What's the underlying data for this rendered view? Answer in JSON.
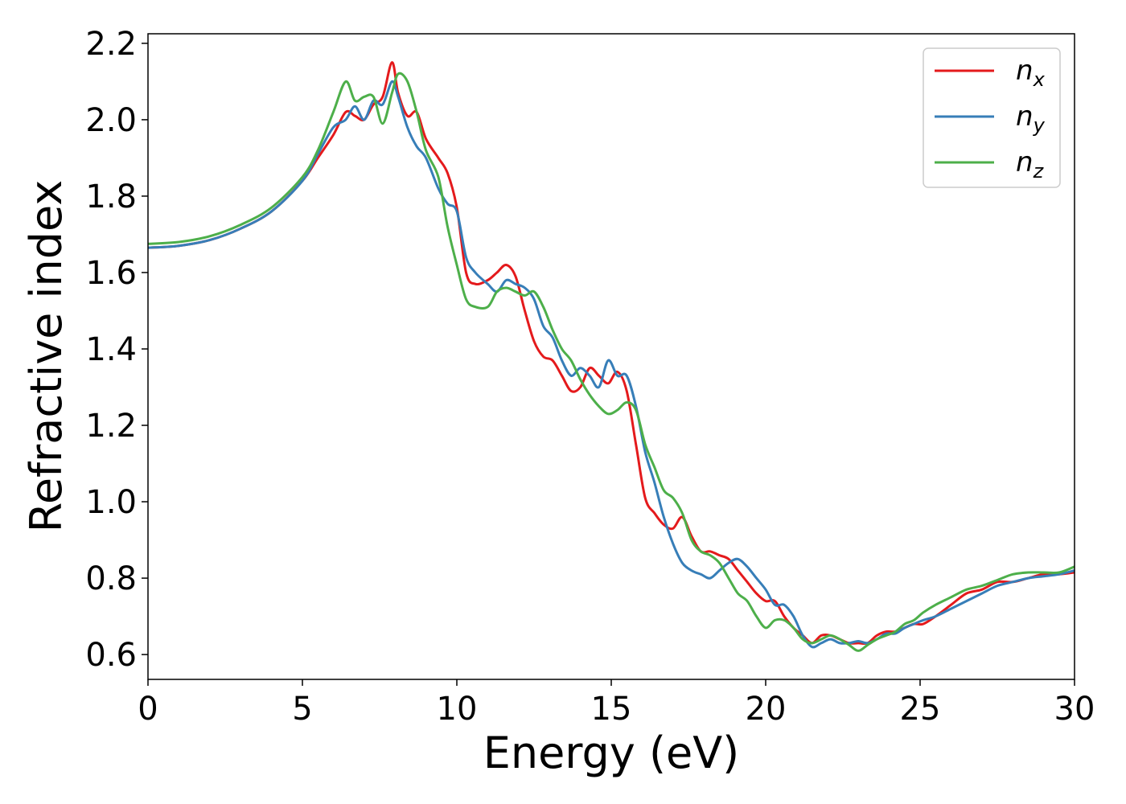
{
  "chart_data": {
    "type": "line",
    "xlabel": "Energy (eV)",
    "ylabel": "Refractive index",
    "xlim": [
      0,
      30
    ],
    "ylim": [
      0.535,
      2.225
    ],
    "xticks": [
      0,
      5,
      10,
      15,
      20,
      25,
      30
    ],
    "xtick_labels": [
      "0",
      "5",
      "10",
      "15",
      "20",
      "25",
      "30"
    ],
    "yticks": [
      0.6,
      0.8,
      1.0,
      1.2,
      1.4,
      1.6,
      1.8,
      2.0,
      2.2
    ],
    "ytick_labels": [
      "0.6",
      "0.8",
      "1.0",
      "1.2",
      "1.4",
      "1.6",
      "1.8",
      "2.0",
      "2.2"
    ],
    "grid": false,
    "legend_position": "top-right",
    "series": [
      {
        "name": "n",
        "subscript": "x",
        "color": "#e41a1c",
        "x": [
          0,
          1,
          2,
          3,
          4,
          5,
          5.5,
          6,
          6.4,
          6.7,
          7.0,
          7.3,
          7.6,
          7.9,
          8.1,
          8.4,
          8.7,
          9.0,
          9.4,
          9.7,
          10.0,
          10.3,
          10.6,
          11.0,
          11.3,
          11.6,
          11.9,
          12.2,
          12.5,
          12.8,
          13.1,
          13.4,
          13.7,
          14.0,
          14.3,
          14.6,
          14.9,
          15.2,
          15.5,
          15.8,
          16.1,
          16.4,
          16.7,
          17.0,
          17.3,
          17.6,
          17.9,
          18.2,
          18.5,
          18.8,
          19.1,
          19.4,
          19.7,
          20.0,
          20.3,
          20.6,
          20.9,
          21.2,
          21.5,
          21.8,
          22.1,
          22.4,
          22.7,
          23.0,
          23.3,
          23.6,
          23.9,
          24.2,
          24.5,
          24.8,
          25.1,
          25.5,
          26.0,
          26.5,
          27.0,
          27.5,
          28.0,
          28.5,
          29.0,
          29.5,
          30.0
        ],
        "y": [
          1.665,
          1.67,
          1.685,
          1.715,
          1.76,
          1.84,
          1.9,
          1.96,
          2.02,
          2.01,
          2.0,
          2.04,
          2.06,
          2.15,
          2.07,
          2.01,
          2.02,
          1.95,
          1.9,
          1.86,
          1.77,
          1.6,
          1.57,
          1.58,
          1.6,
          1.62,
          1.59,
          1.5,
          1.42,
          1.38,
          1.37,
          1.33,
          1.29,
          1.3,
          1.35,
          1.33,
          1.31,
          1.34,
          1.29,
          1.15,
          1.01,
          0.97,
          0.94,
          0.93,
          0.96,
          0.91,
          0.87,
          0.87,
          0.86,
          0.85,
          0.82,
          0.79,
          0.76,
          0.74,
          0.74,
          0.7,
          0.67,
          0.65,
          0.63,
          0.65,
          0.65,
          0.64,
          0.63,
          0.63,
          0.63,
          0.65,
          0.66,
          0.66,
          0.67,
          0.68,
          0.68,
          0.7,
          0.73,
          0.76,
          0.77,
          0.79,
          0.79,
          0.8,
          0.81,
          0.81,
          0.815
        ]
      },
      {
        "name": "n",
        "subscript": "y",
        "color": "#377eb8",
        "x": [
          0,
          1,
          2,
          3,
          4,
          5,
          5.5,
          6,
          6.4,
          6.7,
          7.0,
          7.3,
          7.6,
          7.9,
          8.1,
          8.4,
          8.7,
          9.0,
          9.4,
          9.7,
          10.0,
          10.3,
          10.6,
          11.0,
          11.3,
          11.6,
          11.9,
          12.2,
          12.5,
          12.8,
          13.1,
          13.4,
          13.7,
          14.0,
          14.3,
          14.6,
          14.9,
          15.2,
          15.5,
          15.8,
          16.1,
          16.4,
          16.7,
          17.0,
          17.3,
          17.6,
          17.9,
          18.2,
          18.5,
          18.8,
          19.1,
          19.4,
          19.7,
          20.0,
          20.3,
          20.6,
          20.9,
          21.2,
          21.5,
          21.8,
          22.1,
          22.4,
          22.7,
          23.0,
          23.3,
          23.6,
          23.9,
          24.2,
          24.5,
          24.8,
          25.1,
          25.5,
          26.0,
          26.5,
          27.0,
          27.5,
          28.0,
          28.5,
          29.0,
          29.5,
          30.0
        ],
        "y": [
          1.665,
          1.67,
          1.685,
          1.715,
          1.76,
          1.84,
          1.91,
          1.98,
          2.0,
          2.035,
          2.0,
          2.05,
          2.04,
          2.1,
          2.06,
          1.98,
          1.93,
          1.9,
          1.82,
          1.78,
          1.76,
          1.64,
          1.6,
          1.57,
          1.55,
          1.58,
          1.57,
          1.56,
          1.53,
          1.46,
          1.43,
          1.37,
          1.33,
          1.35,
          1.33,
          1.3,
          1.37,
          1.33,
          1.33,
          1.25,
          1.13,
          1.05,
          0.96,
          0.89,
          0.84,
          0.82,
          0.81,
          0.8,
          0.82,
          0.84,
          0.85,
          0.83,
          0.8,
          0.77,
          0.73,
          0.73,
          0.7,
          0.65,
          0.62,
          0.63,
          0.64,
          0.63,
          0.63,
          0.635,
          0.63,
          0.64,
          0.655,
          0.655,
          0.67,
          0.68,
          0.69,
          0.7,
          0.72,
          0.74,
          0.76,
          0.78,
          0.79,
          0.8,
          0.805,
          0.81,
          0.82
        ]
      },
      {
        "name": "n",
        "subscript": "z",
        "color": "#4daf4a",
        "x": [
          0,
          1,
          2,
          3,
          4,
          5,
          5.5,
          6,
          6.4,
          6.7,
          7.0,
          7.3,
          7.6,
          7.9,
          8.1,
          8.4,
          8.7,
          9.0,
          9.4,
          9.7,
          10.0,
          10.3,
          10.6,
          11.0,
          11.3,
          11.6,
          11.9,
          12.2,
          12.5,
          12.8,
          13.1,
          13.4,
          13.7,
          14.0,
          14.3,
          14.6,
          14.9,
          15.2,
          15.5,
          15.8,
          16.1,
          16.4,
          16.7,
          17.0,
          17.3,
          17.6,
          17.9,
          18.2,
          18.5,
          18.8,
          19.1,
          19.4,
          19.7,
          20.0,
          20.3,
          20.6,
          20.9,
          21.2,
          21.5,
          21.8,
          22.1,
          22.4,
          22.7,
          23.0,
          23.3,
          23.6,
          23.9,
          24.2,
          24.5,
          24.8,
          25.1,
          25.5,
          26.0,
          26.5,
          27.0,
          27.5,
          28.0,
          28.5,
          29.0,
          29.5,
          30.0
        ],
        "y": [
          1.675,
          1.68,
          1.695,
          1.725,
          1.77,
          1.85,
          1.92,
          2.02,
          2.1,
          2.05,
          2.06,
          2.06,
          1.99,
          2.07,
          2.12,
          2.1,
          2.02,
          1.92,
          1.85,
          1.72,
          1.62,
          1.53,
          1.51,
          1.51,
          1.55,
          1.56,
          1.55,
          1.54,
          1.55,
          1.51,
          1.45,
          1.4,
          1.37,
          1.32,
          1.28,
          1.25,
          1.23,
          1.24,
          1.26,
          1.24,
          1.15,
          1.09,
          1.03,
          1.01,
          0.97,
          0.9,
          0.87,
          0.86,
          0.84,
          0.8,
          0.76,
          0.74,
          0.7,
          0.67,
          0.69,
          0.69,
          0.67,
          0.64,
          0.63,
          0.64,
          0.65,
          0.64,
          0.625,
          0.61,
          0.625,
          0.64,
          0.65,
          0.66,
          0.68,
          0.69,
          0.71,
          0.73,
          0.75,
          0.77,
          0.78,
          0.795,
          0.81,
          0.815,
          0.815,
          0.815,
          0.83
        ]
      }
    ]
  }
}
